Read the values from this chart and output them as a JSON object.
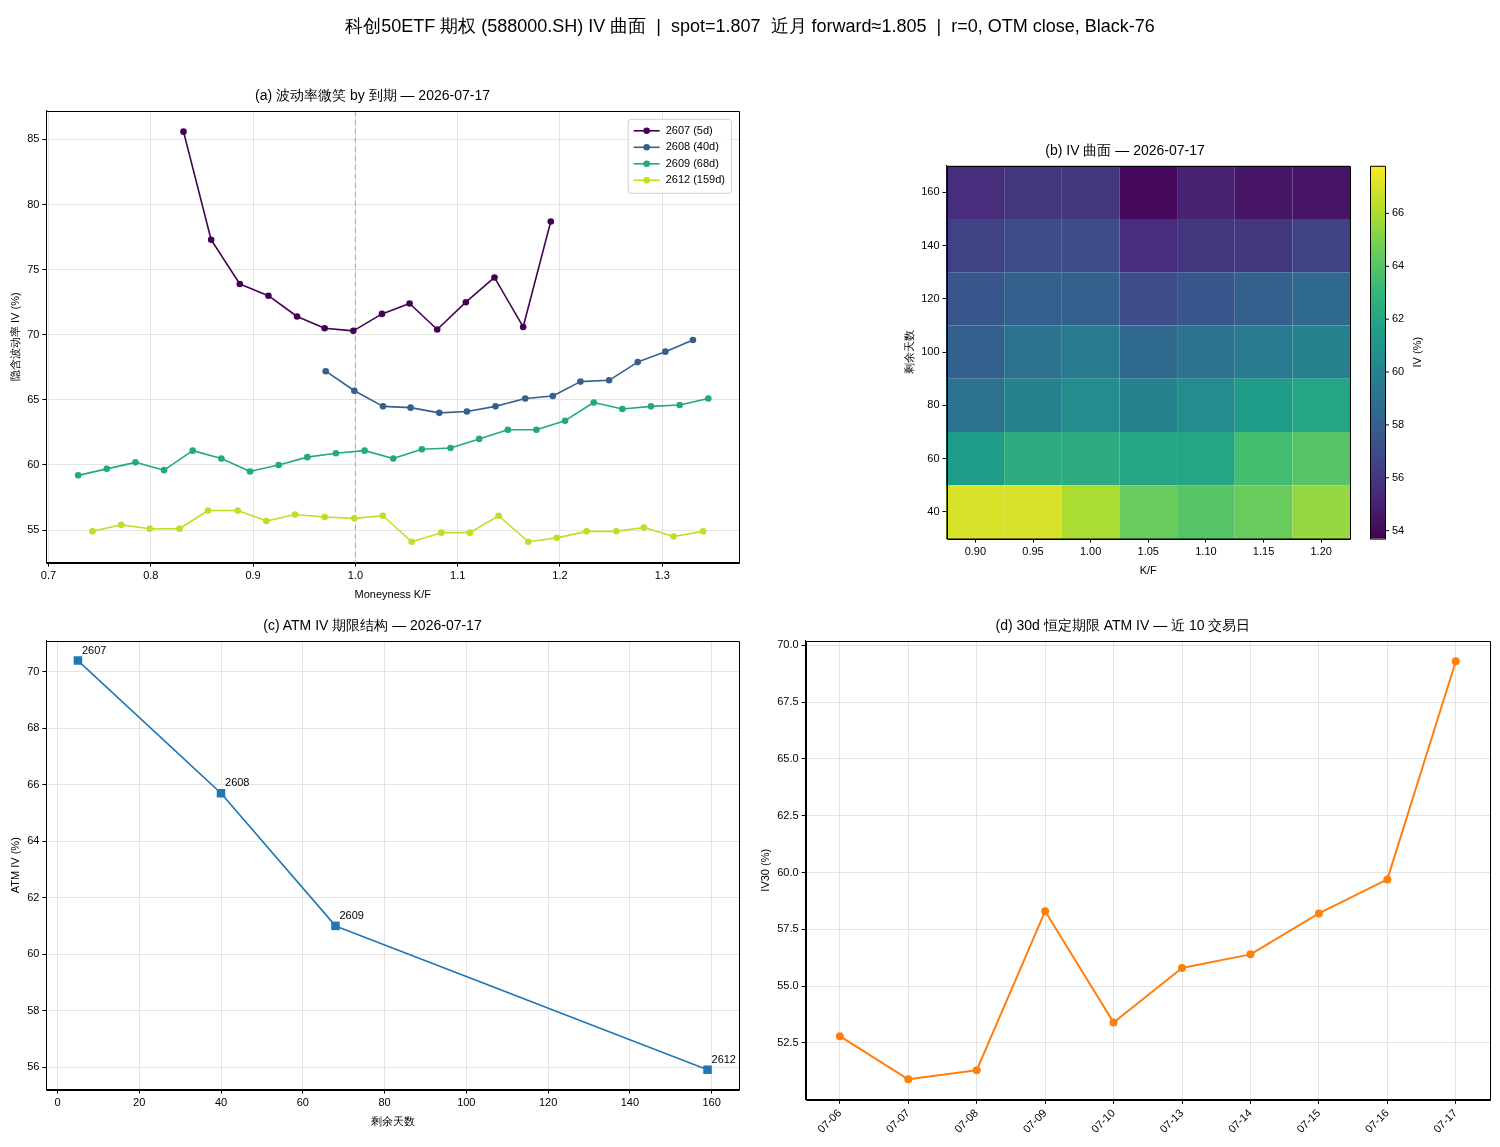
{
  "chart_data": [
    {
      "type": "line",
      "title": "(a) 波动率微笑 by 到期 — 2026-07-17",
      "xlabel": "Moneyness K/F",
      "ylabel": "隐含波动率 IV (%)",
      "annotations": [
        "科创50ETF 期权 (588000.SH) IV 曲面  |  spot=1.807  近月 forward≈1.805  |  r=0, OTM close, Black-76"
      ],
      "series": [
        {
          "name": "2607 (5d)",
          "color": "#440154",
          "x": [
            0.832,
            0.859,
            0.887,
            0.915,
            0.943,
            0.97,
            0.998,
            1.026,
            1.053,
            1.08,
            1.108,
            1.136,
            1.164,
            1.191
          ],
          "values": [
            85.6,
            77.3,
            73.9,
            73.0,
            71.4,
            70.5,
            70.3,
            71.6,
            72.4,
            70.4,
            72.5,
            74.4,
            70.6,
            78.7
          ]
        },
        {
          "name": "2608 (40d)",
          "color": "#355f8d",
          "x": [
            0.971,
            0.999,
            1.027,
            1.054,
            1.082,
            1.109,
            1.137,
            1.166,
            1.193,
            1.22,
            1.248,
            1.276,
            1.303,
            1.33
          ],
          "values": [
            67.2,
            65.7,
            64.5,
            64.4,
            64.0,
            64.1,
            64.5,
            65.1,
            65.3,
            66.4,
            66.5,
            67.9,
            68.7,
            69.6
          ]
        },
        {
          "name": "2609 (68d)",
          "color": "#22a884",
          "x": [
            0.729,
            0.757,
            0.785,
            0.813,
            0.841,
            0.869,
            0.897,
            0.925,
            0.953,
            0.981,
            1.009,
            1.037,
            1.065,
            1.093,
            1.121,
            1.149,
            1.177,
            1.205,
            1.233,
            1.261,
            1.289,
            1.317,
            1.345
          ],
          "values": [
            59.2,
            59.7,
            60.2,
            59.6,
            61.1,
            60.5,
            59.5,
            60.0,
            60.6,
            60.9,
            61.1,
            60.5,
            61.2,
            61.3,
            62.0,
            62.7,
            62.7,
            63.4,
            64.8,
            64.3,
            64.5,
            64.6,
            65.1
          ]
        },
        {
          "name": "2612 (159d)",
          "color": "#bddf26",
          "x": [
            0.743,
            0.771,
            0.799,
            0.828,
            0.856,
            0.885,
            0.913,
            0.941,
            0.97,
            0.999,
            1.027,
            1.055,
            1.084,
            1.112,
            1.14,
            1.169,
            1.197,
            1.226,
            1.255,
            1.282,
            1.311,
            1.34
          ],
          "values": [
            54.9,
            55.4,
            55.1,
            55.1,
            56.5,
            56.5,
            55.7,
            56.2,
            56.0,
            55.9,
            56.1,
            54.1,
            54.8,
            54.8,
            56.1,
            54.1,
            54.4,
            54.9,
            54.9,
            55.2,
            54.5,
            54.9
          ]
        }
      ],
      "xlim": [
        0.698,
        1.375
      ],
      "ylim": [
        52.5,
        87.2
      ],
      "xticks": [
        0.7,
        0.8,
        0.9,
        {
          "value": 1,
          "label": "1.0"
        },
        1.1,
        1.2,
        1.3
      ],
      "yticks": [
        55,
        60,
        65,
        70,
        75,
        80,
        85
      ],
      "grid": true,
      "legend": "top right",
      "marker": "circle",
      "ref_lines": [
        {
          "axis": "x",
          "value": 1,
          "color": "#a6a6a6",
          "line_style": "dashed"
        }
      ]
    },
    {
      "type": "heatmap",
      "title": "(b) IV 曲面 — 2026-07-17",
      "xlabel": "K/F",
      "ylabel": "剩余天数",
      "clabel": "IV (%)",
      "categories": [
        "0.90",
        "0.95",
        "1.00",
        "1.05",
        "1.10",
        "1.15",
        "1.20"
      ],
      "y_categories": [
        "160",
        "140",
        "120",
        "100",
        "80",
        "60",
        "40"
      ],
      "cells": [
        [
          55.5,
          56.0,
          56.0,
          54.0,
          55.0,
          54.5,
          54.5
        ],
        [
          56.5,
          57.0,
          57.0,
          55.5,
          56.0,
          56.0,
          56.5
        ],
        [
          57.5,
          58.0,
          58.0,
          57.0,
          57.5,
          58.0,
          58.5
        ],
        [
          58.0,
          59.0,
          59.5,
          58.5,
          59.0,
          59.5,
          60.0
        ],
        [
          59.0,
          60.0,
          60.5,
          60.0,
          60.5,
          61.5,
          62.0
        ],
        [
          61.5,
          62.5,
          62.5,
          62.0,
          62.0,
          63.5,
          64.0
        ],
        [
          67.0,
          67.0,
          66.0,
          64.5,
          64.0,
          64.5,
          65.5
        ]
      ],
      "clim": [
        53.7,
        67.8
      ],
      "cticks": [
        54,
        56,
        58,
        60,
        62,
        64,
        66
      ]
    },
    {
      "type": "line",
      "title": "(c) ATM IV 期限结构 — 2026-07-17",
      "xlabel": "剩余天数",
      "ylabel": "ATM IV (%)",
      "x": [
        5,
        40,
        68,
        159
      ],
      "values": [
        70.4,
        65.7,
        61.0,
        55.9
      ],
      "color": "#1f77b4",
      "xlim": [
        -2.7,
        166.7
      ],
      "ylim": [
        55.2,
        71.1
      ],
      "xticks": [
        0,
        20,
        40,
        60,
        80,
        100,
        120,
        140,
        160
      ],
      "yticks": [
        56,
        58,
        60,
        62,
        64,
        66,
        68,
        70
      ],
      "grid": true,
      "marker": "square",
      "annotations": [
        {
          "text": "2607",
          "x": 5,
          "y": 70.4
        },
        {
          "text": "2608",
          "x": 40,
          "y": 65.7
        },
        {
          "text": "2609",
          "x": 68,
          "y": 61.0
        },
        {
          "text": "2612",
          "x": 159,
          "y": 55.9
        }
      ]
    },
    {
      "type": "line",
      "title": "(d) 30d 恒定期限 ATM IV — 近 10 交易日",
      "ylabel": "IV30 (%)",
      "categories": [
        "07-06",
        "07-07",
        "07-08",
        "07-09",
        "07-10",
        "07-13",
        "07-14",
        "07-15",
        "07-16",
        "07-17"
      ],
      "values": [
        52.8,
        50.9,
        51.3,
        58.3,
        53.4,
        55.8,
        56.4,
        58.2,
        59.7,
        69.3
      ],
      "color": "#ff7f0e",
      "ylim": [
        50.0,
        70.2
      ],
      "yticks": [
        52.5,
        {
          "value": 55,
          "label": "55.0"
        },
        57.5,
        {
          "value": 60,
          "label": "60.0"
        },
        62.5,
        {
          "value": 65,
          "label": "65.0"
        },
        67.5,
        {
          "value": 70,
          "label": "70.0"
        }
      ],
      "grid": true,
      "marker": "circle"
    }
  ]
}
